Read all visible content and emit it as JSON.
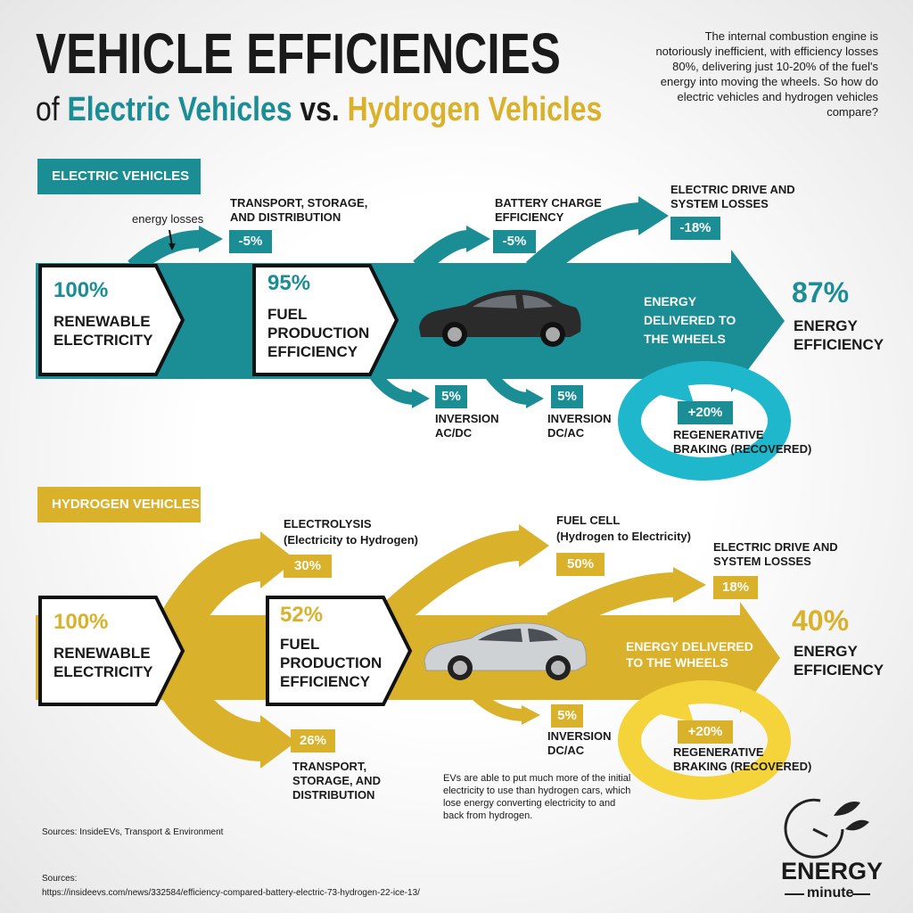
{
  "header": {
    "title": "VEHICLE EFFICIENCIES",
    "of": "of",
    "electric": "Electric Vehicles",
    "vs": "vs.",
    "hydrogen": "Hydrogen Vehicles",
    "intro": "The internal combustion engine is notoriously inefficient, with efficiency losses 80%, delivering just 10-20% of the fuel's energy into moving the wheels. So how do electric vehicles and hydrogen vehicles compare?"
  },
  "ev": {
    "tag": "ELECTRIC VEHICLES",
    "energy_losses": "energy losses",
    "source": {
      "value": "100%",
      "label": "RENEWABLE ELECTRICITY"
    },
    "fuel": {
      "value": "95%",
      "label": "FUEL PRODUCTION EFFICIENCY"
    },
    "transport": {
      "label": "TRANSPORT, STORAGE, AND DISTRIBUTION",
      "value": "-5%"
    },
    "battery": {
      "label": "BATTERY CHARGE EFFICIENCY",
      "value": "-5%"
    },
    "drive": {
      "label": "ELECTRIC DRIVE AND SYSTEM LOSSES",
      "value": "-18%"
    },
    "inversion_acdc": {
      "value": "5%",
      "label": "INVERSION AC/DC"
    },
    "inversion_dcac": {
      "value": "5%",
      "label": "INVERSION DC/AC"
    },
    "delivered": "ENERGY DELIVERED TO THE WHEELS",
    "result": {
      "value": "87%",
      "label": "ENERGY EFFICIENCY"
    },
    "regen": {
      "value": "+20%",
      "label": "REGENERATIVE BRAKING (RECOVERED)"
    }
  },
  "hv": {
    "tag": "HYDROGEN VEHICLES",
    "source": {
      "value": "100%",
      "label": "RENEWABLE ELECTRICITY"
    },
    "fuel": {
      "value": "52%",
      "label": "FUEL PRODUCTION EFFICIENCY"
    },
    "electrolysis": {
      "label": "ELECTROLYSIS",
      "sub": "(Electricity to Hydrogen)",
      "value": "30%"
    },
    "fuel_cell": {
      "label": "FUEL CELL",
      "sub": "(Hydrogen to Electricity)",
      "value": "50%"
    },
    "drive": {
      "label": "ELECTRIC DRIVE AND SYSTEM LOSSES",
      "value": "18%"
    },
    "transport": {
      "value": "26%",
      "label": "TRANSPORT, STORAGE, AND DISTRIBUTION"
    },
    "inversion_dcac": {
      "value": "5%",
      "label": "INVERSION DC/AC"
    },
    "delivered": "ENERGY DELIVERED TO THE WHEELS",
    "result": {
      "value": "40%",
      "label": "ENERGY EFFICIENCY"
    },
    "regen": {
      "value": "+20%",
      "label": "REGENERATIVE BRAKING (RECOVERED)"
    },
    "note": "EVs are able to put much more of the initial electricity to use than hydrogen cars, which lose energy converting electricity to and back from hydrogen."
  },
  "footer": {
    "sources_short": "Sources: InsideEVs, Transport & Environment",
    "sources_label": "Sources:",
    "url": "https://insideevs.com/news/332584/efficiency-compared-battery-electric-73-hydrogen-22-ice-13/",
    "logo_top": "ENERGY",
    "logo_bottom": "minute"
  }
}
